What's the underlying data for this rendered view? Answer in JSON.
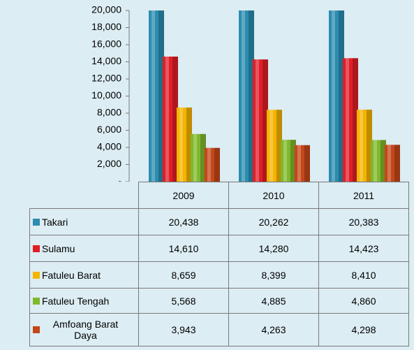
{
  "chart_data": {
    "type": "bar",
    "categories": [
      "2009",
      "2010",
      "2011"
    ],
    "series": [
      {
        "name": "Takari",
        "color": "#2b8db0",
        "values": [
          20438,
          20262,
          20383
        ],
        "value_labels": [
          "20,438",
          "20,262",
          "20,383"
        ]
      },
      {
        "name": "Sulamu",
        "color": "#e01e28",
        "values": [
          14610,
          14280,
          14423
        ],
        "value_labels": [
          "14,610",
          "14,280",
          "14,423"
        ]
      },
      {
        "name": "Fatuleu Barat",
        "color": "#f5b400",
        "values": [
          8659,
          8399,
          8410
        ],
        "value_labels": [
          "8,659",
          "8,399",
          "8,410"
        ]
      },
      {
        "name": "Fatuleu Tengah",
        "color": "#80b82c",
        "values": [
          5568,
          4885,
          4860
        ],
        "value_labels": [
          "5,568",
          "4,885",
          "4,860"
        ]
      },
      {
        "name": "Amfoang Barat Daya",
        "color": "#c4471a",
        "values": [
          3943,
          4263,
          4298
        ],
        "value_labels": [
          "3,943",
          "4,263",
          "4,298"
        ]
      }
    ],
    "ylim": [
      0,
      20000
    ],
    "yticks": [
      {
        "value": 0,
        "label": "-"
      },
      {
        "value": 2000,
        "label": "2,000"
      },
      {
        "value": 4000,
        "label": "4,000"
      },
      {
        "value": 6000,
        "label": "6,000"
      },
      {
        "value": 8000,
        "label": "8,000"
      },
      {
        "value": 10000,
        "label": "10,000"
      },
      {
        "value": 12000,
        "label": "12,000"
      },
      {
        "value": 14000,
        "label": "14,000"
      },
      {
        "value": 16000,
        "label": "16,000"
      },
      {
        "value": 18000,
        "label": "18,000"
      },
      {
        "value": 20000,
        "label": "20,000"
      }
    ],
    "legend": "table"
  }
}
